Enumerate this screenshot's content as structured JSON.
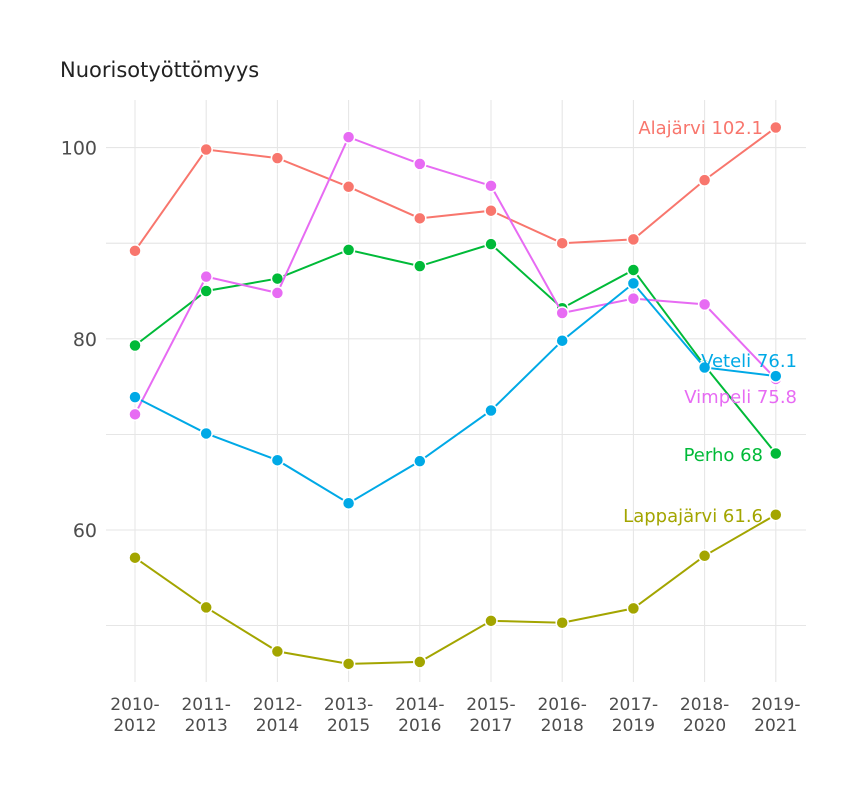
{
  "chart_data": {
    "type": "line",
    "title": "Nuorisotyöttömyys",
    "xlabel": "",
    "ylabel": "",
    "categories": [
      [
        "2010-",
        "2012"
      ],
      [
        "2011-",
        "2013"
      ],
      [
        "2012-",
        "2014"
      ],
      [
        "2013-",
        "2015"
      ],
      [
        "2014-",
        "2016"
      ],
      [
        "2015-",
        "2017"
      ],
      [
        "2016-",
        "2018"
      ],
      [
        "2017-",
        "2019"
      ],
      [
        "2018-",
        "2020"
      ],
      [
        "2019-",
        "2021"
      ]
    ],
    "yticks": [
      "60",
      "80",
      "100"
    ],
    "ylim": [
      45,
      105
    ],
    "grid": true,
    "legend": "none",
    "series": [
      {
        "name": "Alajärvi",
        "color": "#F8766D",
        "end_label": "Alajärvi 102.1",
        "values": [
          89.2,
          99.8,
          98.9,
          95.9,
          92.6,
          93.4,
          90.0,
          90.4,
          96.6,
          102.1
        ]
      },
      {
        "name": "Perho",
        "color": "#00BA38",
        "end_label": "Perho 68",
        "values": [
          79.3,
          85.0,
          86.3,
          89.3,
          87.6,
          89.9,
          83.2,
          87.2,
          77.2,
          68.0
        ]
      },
      {
        "name": "Vimpeli",
        "color": "#E76BF3",
        "end_label": "Vimpeli 75.8",
        "values": [
          72.1,
          86.5,
          84.8,
          101.1,
          98.3,
          96.0,
          82.7,
          84.2,
          83.6,
          75.8
        ]
      },
      {
        "name": "Veteli",
        "color": "#00A9E6",
        "end_label": "Veteli 76.1",
        "values": [
          73.9,
          70.1,
          67.3,
          62.8,
          67.2,
          72.5,
          79.8,
          85.8,
          77.0,
          76.1
        ]
      },
      {
        "name": "Lappajärvi",
        "color": "#A3A500",
        "end_label": "Lappajärvi 61.6",
        "values": [
          57.1,
          51.9,
          47.3,
          46.0,
          46.2,
          50.5,
          50.3,
          51.8,
          57.3,
          61.6
        ]
      }
    ]
  }
}
